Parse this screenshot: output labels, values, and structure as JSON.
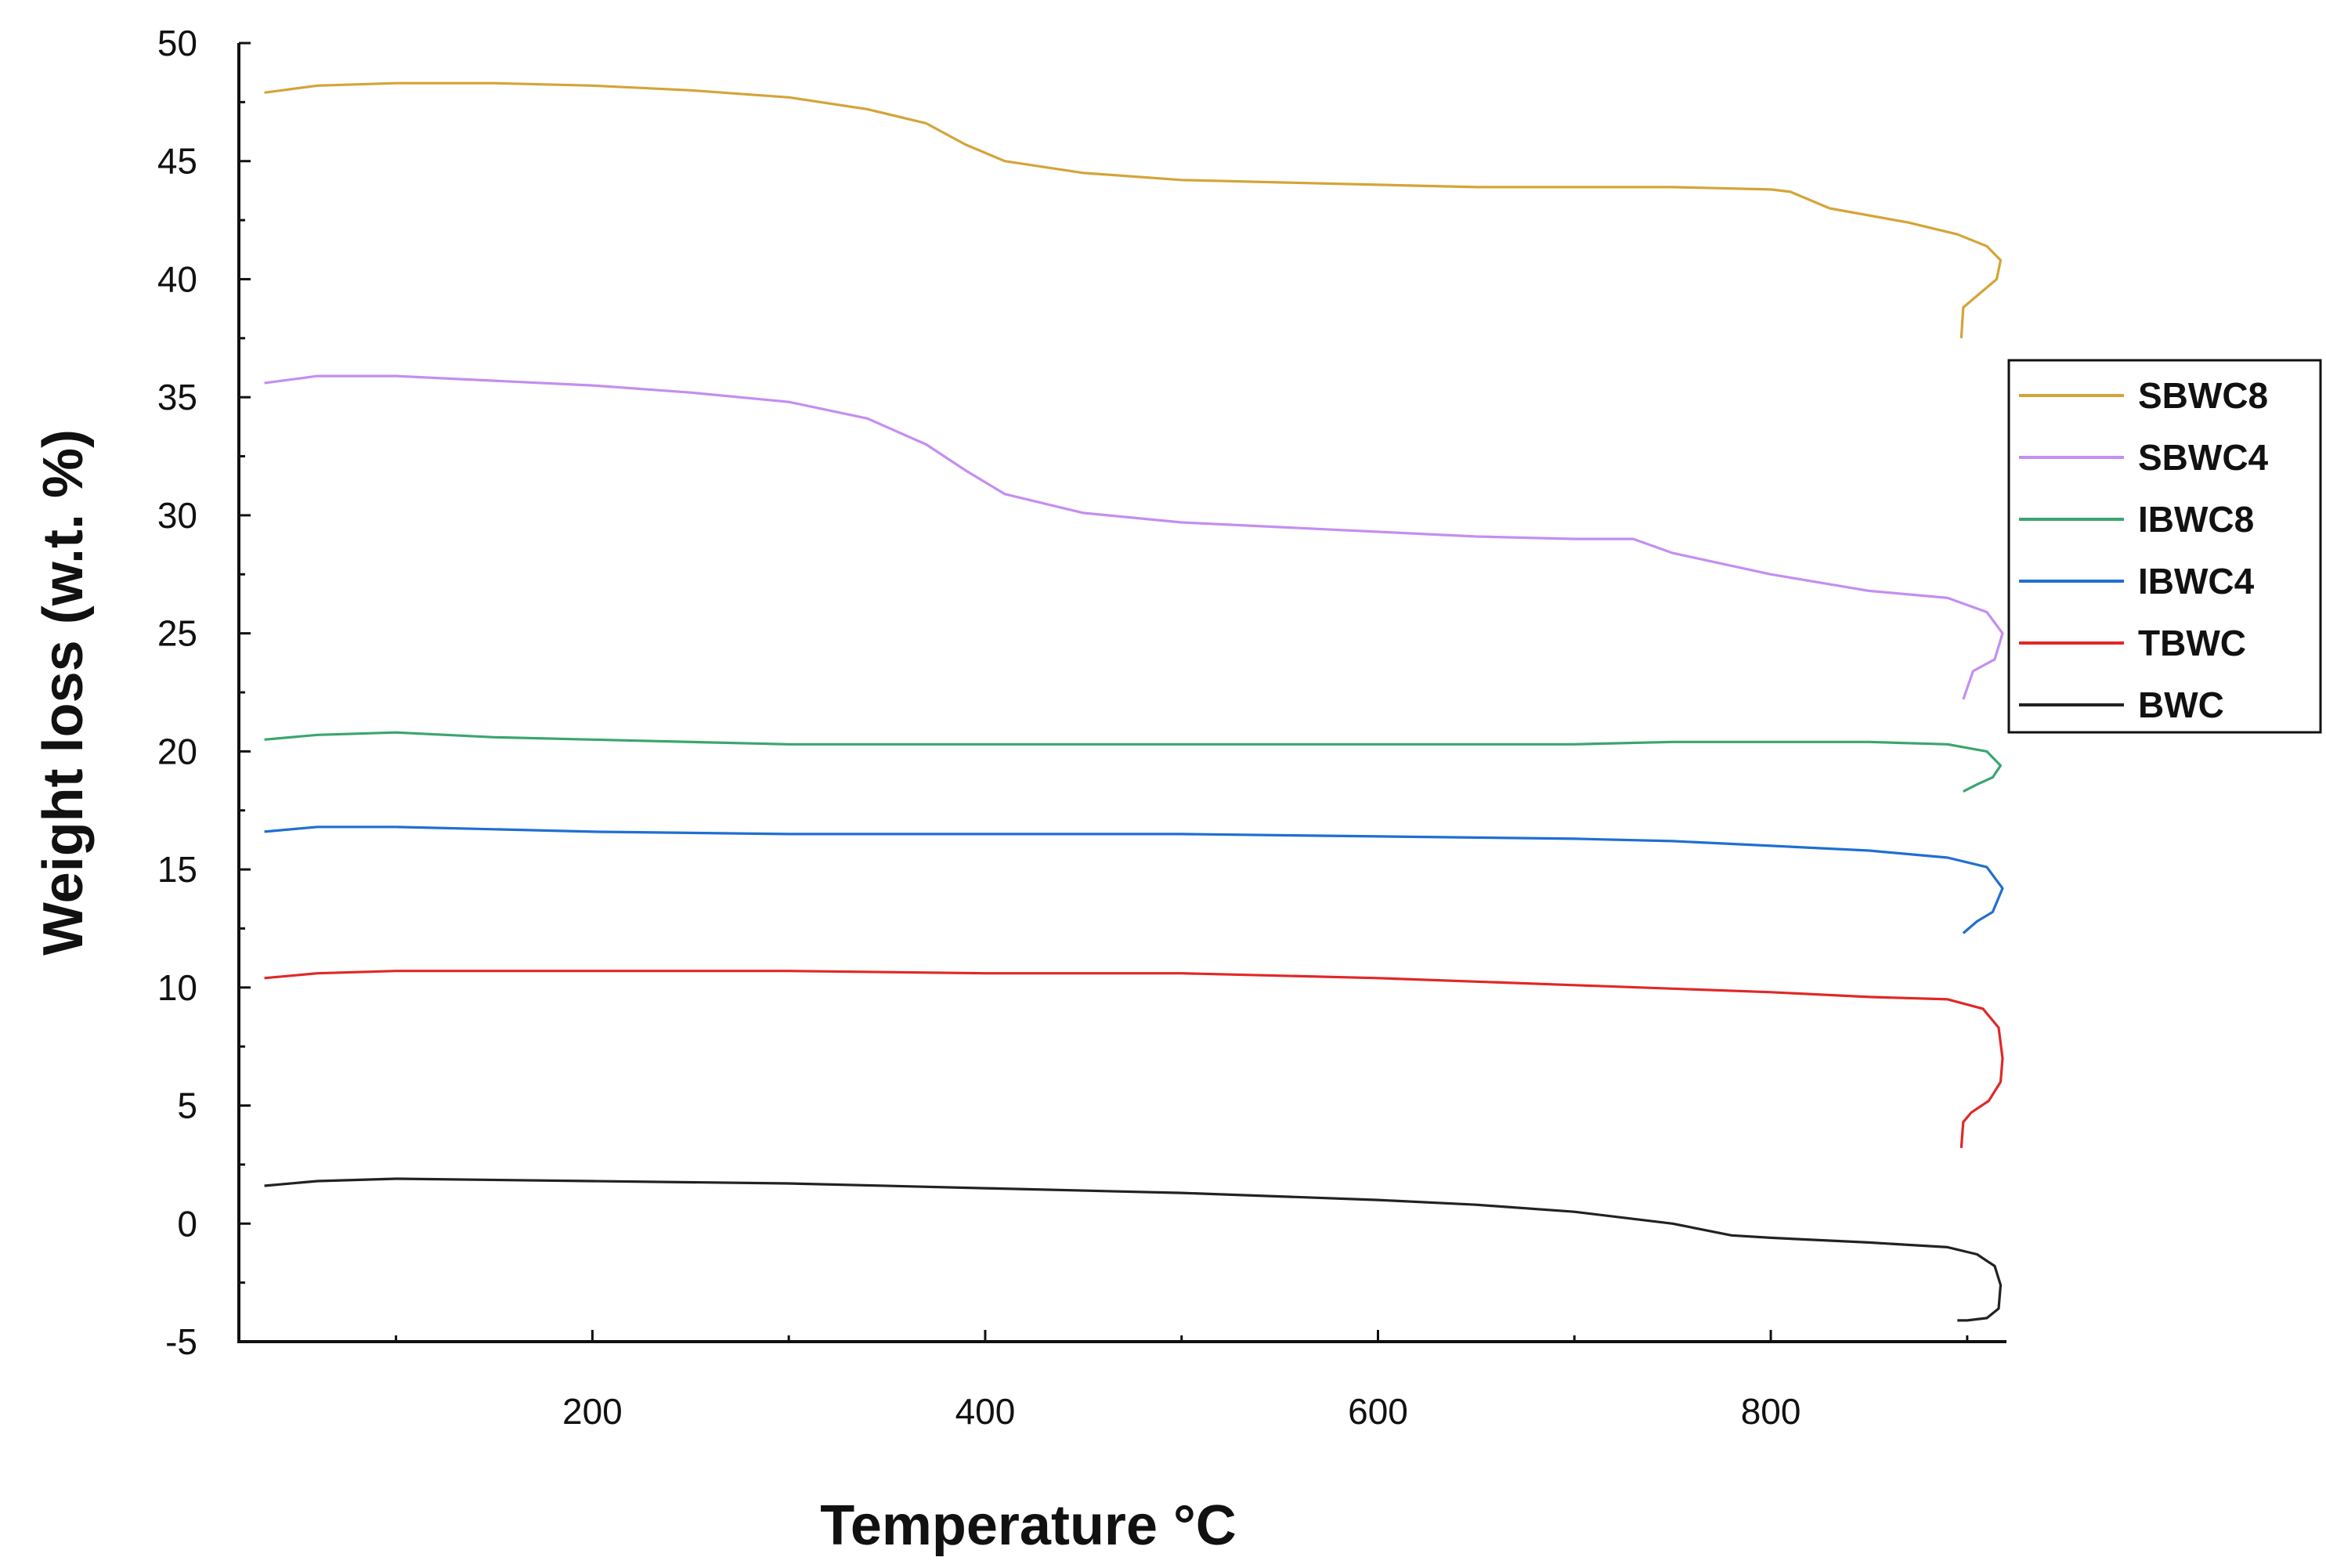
{
  "chart_data": {
    "type": "line",
    "title": "",
    "xlabel": "Temperature °C",
    "ylabel": "Weight loss (w.t. %)",
    "xlim": [
      20,
      920
    ],
    "ylim": [
      -5,
      50
    ],
    "x_ticks": [
      200,
      400,
      600,
      800
    ],
    "y_ticks": [
      -5,
      0,
      5,
      10,
      15,
      20,
      25,
      30,
      35,
      40,
      45,
      50
    ],
    "grid": false,
    "legend_position": "right",
    "series": [
      {
        "name": "SBWC8",
        "color": "#d4a437",
        "points": [
          [
            33,
            47.9
          ],
          [
            60,
            48.2
          ],
          [
            100,
            48.3
          ],
          [
            150,
            48.3
          ],
          [
            200,
            48.2
          ],
          [
            250,
            48.0
          ],
          [
            300,
            47.7
          ],
          [
            340,
            47.2
          ],
          [
            370,
            46.6
          ],
          [
            390,
            45.7
          ],
          [
            410,
            45.0
          ],
          [
            450,
            44.5
          ],
          [
            500,
            44.2
          ],
          [
            550,
            44.1
          ],
          [
            600,
            44.0
          ],
          [
            650,
            43.9
          ],
          [
            700,
            43.9
          ],
          [
            750,
            43.9
          ],
          [
            800,
            43.8
          ],
          [
            810,
            43.7
          ],
          [
            830,
            43.0
          ],
          [
            870,
            42.4
          ],
          [
            895,
            41.9
          ],
          [
            910,
            41.4
          ],
          [
            917,
            40.8
          ],
          [
            915,
            40.0
          ],
          [
            905,
            39.3
          ],
          [
            898,
            38.8
          ],
          [
            897,
            37.5
          ]
        ]
      },
      {
        "name": "SBWC4",
        "color": "#c48ef0",
        "points": [
          [
            33,
            35.6
          ],
          [
            60,
            35.9
          ],
          [
            100,
            35.9
          ],
          [
            150,
            35.7
          ],
          [
            200,
            35.5
          ],
          [
            250,
            35.2
          ],
          [
            300,
            34.8
          ],
          [
            340,
            34.1
          ],
          [
            370,
            33.0
          ],
          [
            390,
            31.9
          ],
          [
            410,
            30.9
          ],
          [
            450,
            30.1
          ],
          [
            500,
            29.7
          ],
          [
            550,
            29.5
          ],
          [
            600,
            29.3
          ],
          [
            650,
            29.1
          ],
          [
            700,
            29.0
          ],
          [
            730,
            29.0
          ],
          [
            750,
            28.4
          ],
          [
            800,
            27.5
          ],
          [
            850,
            26.8
          ],
          [
            890,
            26.5
          ],
          [
            910,
            25.9
          ],
          [
            918,
            25.0
          ],
          [
            914,
            23.9
          ],
          [
            903,
            23.4
          ],
          [
            898,
            22.2
          ]
        ]
      },
      {
        "name": "IBWC8",
        "color": "#3aa66e",
        "points": [
          [
            33,
            20.5
          ],
          [
            60,
            20.7
          ],
          [
            100,
            20.8
          ],
          [
            150,
            20.6
          ],
          [
            200,
            20.5
          ],
          [
            300,
            20.3
          ],
          [
            400,
            20.3
          ],
          [
            500,
            20.3
          ],
          [
            600,
            20.3
          ],
          [
            700,
            20.3
          ],
          [
            750,
            20.4
          ],
          [
            800,
            20.4
          ],
          [
            850,
            20.4
          ],
          [
            890,
            20.3
          ],
          [
            910,
            20.0
          ],
          [
            917,
            19.4
          ],
          [
            913,
            18.9
          ],
          [
            905,
            18.6
          ],
          [
            898,
            18.3
          ]
        ]
      },
      {
        "name": "IBWC4",
        "color": "#1f6fd1",
        "points": [
          [
            33,
            16.6
          ],
          [
            60,
            16.8
          ],
          [
            100,
            16.8
          ],
          [
            150,
            16.7
          ],
          [
            200,
            16.6
          ],
          [
            300,
            16.5
          ],
          [
            400,
            16.5
          ],
          [
            500,
            16.5
          ],
          [
            600,
            16.4
          ],
          [
            700,
            16.3
          ],
          [
            750,
            16.2
          ],
          [
            800,
            16.0
          ],
          [
            850,
            15.8
          ],
          [
            890,
            15.5
          ],
          [
            910,
            15.1
          ],
          [
            918,
            14.2
          ],
          [
            913,
            13.2
          ],
          [
            905,
            12.8
          ],
          [
            898,
            12.3
          ]
        ]
      },
      {
        "name": "TBWC",
        "color": "#e02828",
        "points": [
          [
            33,
            10.4
          ],
          [
            60,
            10.6
          ],
          [
            100,
            10.7
          ],
          [
            200,
            10.7
          ],
          [
            300,
            10.7
          ],
          [
            400,
            10.6
          ],
          [
            500,
            10.6
          ],
          [
            600,
            10.4
          ],
          [
            700,
            10.1
          ],
          [
            800,
            9.8
          ],
          [
            850,
            9.6
          ],
          [
            890,
            9.5
          ],
          [
            908,
            9.1
          ],
          [
            916,
            8.3
          ],
          [
            918,
            7.0
          ],
          [
            917,
            6.0
          ],
          [
            911,
            5.2
          ],
          [
            902,
            4.7
          ],
          [
            898,
            4.3
          ],
          [
            897,
            3.2
          ]
        ]
      },
      {
        "name": "BWC",
        "color": "#222222",
        "points": [
          [
            33,
            1.6
          ],
          [
            60,
            1.8
          ],
          [
            100,
            1.9
          ],
          [
            200,
            1.8
          ],
          [
            300,
            1.7
          ],
          [
            400,
            1.5
          ],
          [
            500,
            1.3
          ],
          [
            600,
            1.0
          ],
          [
            650,
            0.8
          ],
          [
            700,
            0.5
          ],
          [
            750,
            0.0
          ],
          [
            780,
            -0.5
          ],
          [
            800,
            -0.6
          ],
          [
            850,
            -0.8
          ],
          [
            890,
            -1.0
          ],
          [
            905,
            -1.3
          ],
          [
            914,
            -1.8
          ],
          [
            917,
            -2.6
          ],
          [
            916,
            -3.6
          ],
          [
            910,
            -4.0
          ],
          [
            900,
            -4.1
          ],
          [
            895,
            -4.1
          ]
        ]
      }
    ]
  }
}
